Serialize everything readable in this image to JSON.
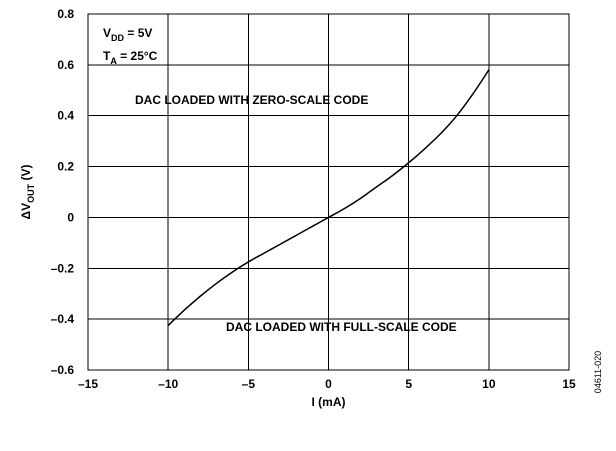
{
  "chart_data": {
    "type": "line",
    "xlabel": "I (mA)",
    "ylabel": {
      "main": "ΔV",
      "subscript": "OUT",
      "unit": " (V)"
    },
    "xlim": [
      -15,
      15
    ],
    "ylim": [
      -0.6,
      0.8
    ],
    "x_ticks": [
      -15,
      -10,
      -5,
      0,
      5,
      10,
      15
    ],
    "x_tick_labels": [
      "–15",
      "–10",
      "–5",
      "0",
      "5",
      "10",
      "15"
    ],
    "y_ticks": [
      0.8,
      0.6,
      0.4,
      0.2,
      0,
      -0.2,
      -0.4,
      -0.6
    ],
    "y_tick_labels": [
      "0.8",
      "0.6",
      "0.4",
      "0.2",
      "0",
      "–0.2",
      "–0.4",
      "–0.6"
    ],
    "grid": true,
    "series": [
      {
        "x": [
          -10,
          -9,
          -8,
          -7,
          -6,
          -5,
          -4,
          -3,
          -2,
          -1,
          0,
          1,
          2,
          3,
          4,
          5,
          6,
          7,
          8,
          9,
          10
        ],
        "y": [
          -0.425,
          -0.365,
          -0.31,
          -0.26,
          -0.215,
          -0.175,
          -0.14,
          -0.105,
          -0.07,
          -0.035,
          0,
          0.035,
          0.075,
          0.12,
          0.165,
          0.215,
          0.27,
          0.33,
          0.4,
          0.485,
          0.58
        ]
      }
    ],
    "annotations": {
      "zero_scale": "DAC LOADED WITH ZERO-SCALE CODE",
      "full_scale": "DAC LOADED WITH FULL-SCALE CODE"
    },
    "conditions": {
      "vdd": {
        "main": "V",
        "subscript": "DD",
        "value": " = 5V"
      },
      "ta": {
        "main": "T",
        "subscript": "A",
        "value": " = 25°C"
      }
    },
    "figure_id": "04611-020"
  }
}
